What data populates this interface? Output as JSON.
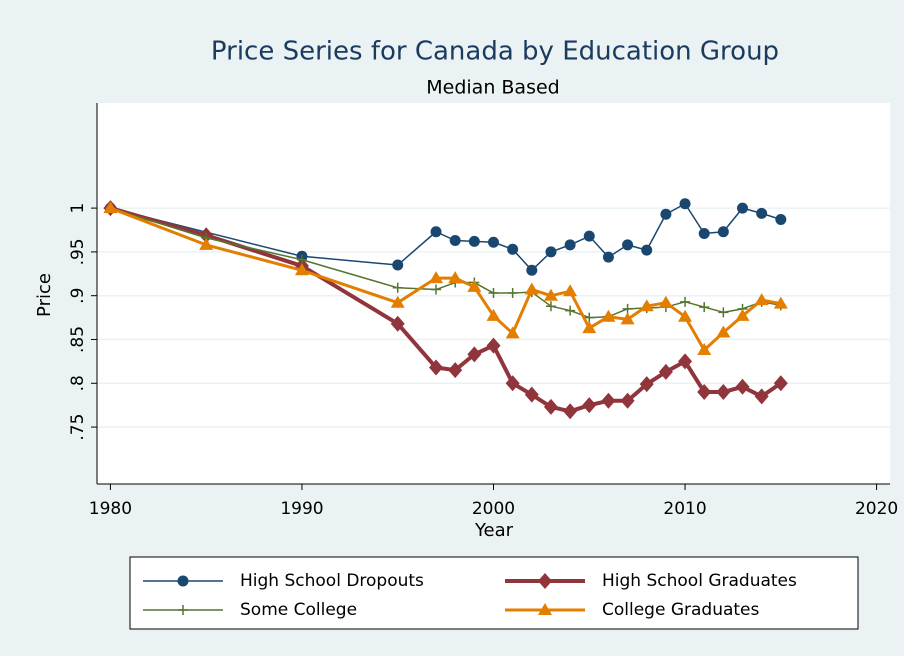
{
  "chart_data": {
    "type": "line",
    "title": "Price Series for Canada by Education Group",
    "subtitle": "Median Based",
    "x_label": "Year",
    "y_label": "Price",
    "xlim": [
      1979.3,
      2020.7
    ],
    "xticks": [
      1980,
      1990,
      2000,
      2010,
      2020
    ],
    "ylim": [
      0.685,
      1.12
    ],
    "yticks": [
      {
        "value": 0.75,
        "label": ".75"
      },
      {
        "value": 0.8,
        "label": ".8"
      },
      {
        "value": 0.85,
        "label": ".85"
      },
      {
        "value": 0.9,
        "label": ".9"
      },
      {
        "value": 0.95,
        "label": ".95"
      },
      1
    ],
    "grid": true,
    "series": [
      {
        "name": "High School Dropouts",
        "color": "#1a476f",
        "marker": "circle",
        "x": [
          1980,
          1990,
          1995,
          1997,
          1998,
          1999,
          2000,
          2001,
          2002,
          2003,
          2004,
          2005,
          2006,
          2007,
          2008,
          2009,
          2010,
          2011,
          2012,
          2013,
          2014,
          2015
        ],
        "values": [
          1.0,
          0.945,
          0.935,
          0.973,
          0.963,
          0.962,
          0.961,
          0.953,
          0.929,
          0.95,
          0.958,
          0.968,
          0.944,
          0.958,
          0.952,
          0.993,
          1.005,
          0.971,
          0.973,
          1.0,
          0.994,
          0.987
        ]
      },
      {
        "name": "High School Graduates",
        "color": "#90353b",
        "marker": "diamond",
        "x": [
          1980,
          1985,
          1990,
          1995,
          1997,
          1998,
          1999,
          2000,
          2001,
          2002,
          2003,
          2004,
          2005,
          2006,
          2007,
          2008,
          2009,
          2010,
          2011,
          2012,
          2013,
          2014,
          2015
        ],
        "values": [
          1.0,
          0.969,
          0.934,
          0.868,
          0.818,
          0.815,
          0.833,
          0.843,
          0.8,
          0.787,
          0.773,
          0.768,
          0.775,
          0.78,
          0.78,
          0.799,
          0.813,
          0.825,
          0.79,
          0.79,
          0.796,
          0.785,
          0.8
        ]
      },
      {
        "name": "Some College",
        "color": "#55752f",
        "marker": "plus",
        "x": [
          1980,
          1985,
          1990,
          1995,
          1997,
          1998,
          1999,
          2000,
          2001,
          2002,
          2003,
          2004,
          2005,
          2006,
          2007,
          2008,
          2009,
          2010,
          2011,
          2012,
          2013,
          2014,
          2015
        ],
        "values": [
          1.0,
          0.966,
          0.941,
          0.909,
          0.907,
          0.915,
          0.915,
          0.903,
          0.903,
          0.904,
          0.888,
          0.883,
          0.875,
          0.876,
          0.885,
          0.886,
          0.887,
          0.893,
          0.887,
          0.881,
          0.885,
          0.893,
          0.889
        ]
      },
      {
        "name": "College Graduates",
        "color": "#e37e00",
        "marker": "triangle",
        "x": [
          1980,
          1985,
          1990,
          1995,
          1997,
          1998,
          1999,
          2000,
          2001,
          2002,
          2003,
          2004,
          2005,
          2006,
          2007,
          2008,
          2009,
          2010,
          2011,
          2012,
          2013,
          2014,
          2015
        ],
        "values": [
          1.0,
          0.958,
          0.929,
          0.892,
          0.92,
          0.92,
          0.91,
          0.877,
          0.857,
          0.907,
          0.9,
          0.905,
          0.863,
          0.876,
          0.873,
          0.888,
          0.892,
          0.876,
          0.838,
          0.858,
          0.877,
          0.895,
          0.891
        ]
      }
    ]
  }
}
